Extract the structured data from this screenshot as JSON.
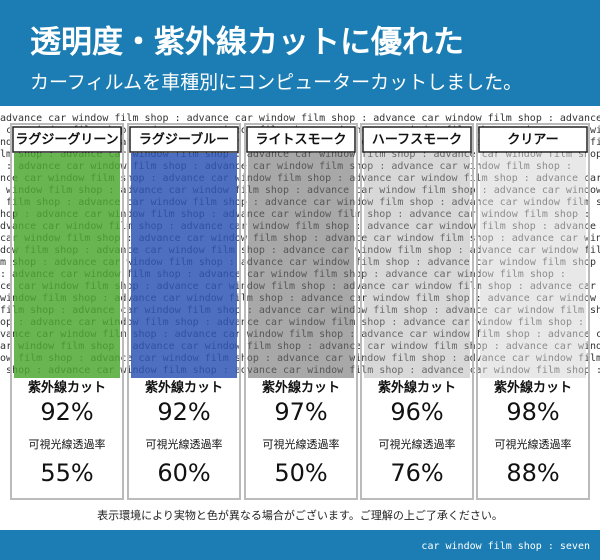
{
  "header": {
    "title": "透明度・紫外線カットに優れた",
    "subtitle": "カーフィルムを車種別にコンピューターカットしました。"
  },
  "background_text": "advance car window film shop : ",
  "films": [
    {
      "name": "ラグジーグリーン",
      "uv_label": "紫外線カット",
      "uv": "92%",
      "visible_label": "可視光線透過率",
      "visible": "55%"
    },
    {
      "name": "ラグジーブルー",
      "uv_label": "紫外線カット",
      "uv": "92%",
      "visible_label": "可視光線透過率",
      "visible": "60%"
    },
    {
      "name": "ライトスモーク",
      "uv_label": "紫外線カット",
      "uv": "97%",
      "visible_label": "可視光線透過率",
      "visible": "50%"
    },
    {
      "name": "ハーフスモーク",
      "uv_label": "紫外線カット",
      "uv": "96%",
      "visible_label": "可視光線透過率",
      "visible": "76%"
    },
    {
      "name": "クリアー",
      "uv_label": "紫外線カット",
      "uv": "98%",
      "visible_label": "可視光線透過率",
      "visible": "88%"
    }
  ],
  "note": "表示環境により実物と色が異なる場合がございます。ご理解の上ご了承ください。",
  "footer": "car window film shop : seven"
}
